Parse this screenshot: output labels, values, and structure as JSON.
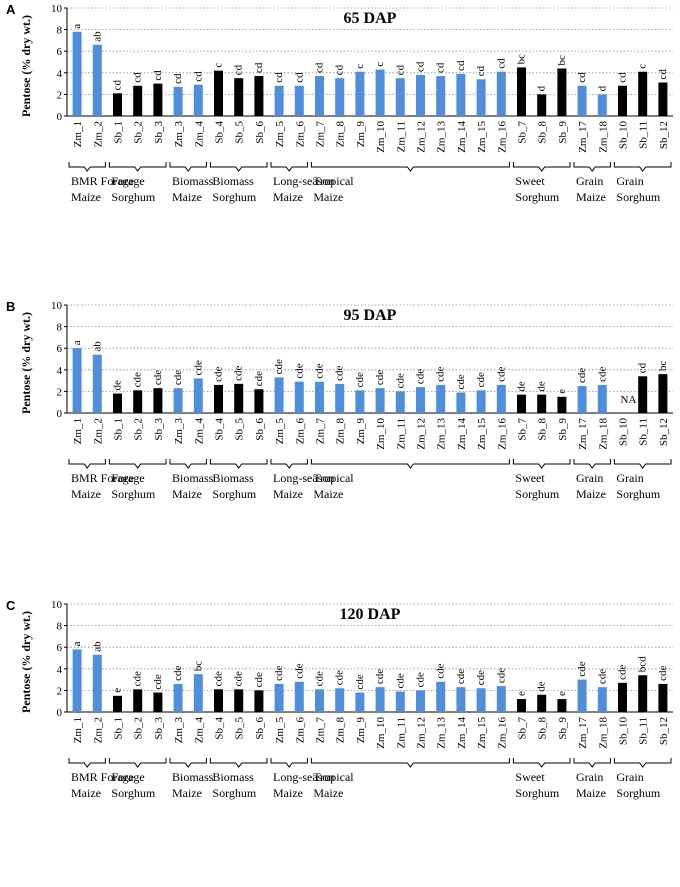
{
  "colors": {
    "maize": "#4f8edb",
    "sorghum": "#000000"
  },
  "categories": [
    "Zm_1",
    "Zm_2",
    "Sb_1",
    "Sb_2",
    "Sb_3",
    "Zm_3",
    "Zm_4",
    "Sb_4",
    "Sb_5",
    "Sb_6",
    "Zm_5",
    "Zm_6",
    "Zm_7",
    "Zm_8",
    "Zm_9",
    "Zm_10",
    "Zm_11",
    "Zm_12",
    "Zm_13",
    "Zm_14",
    "Zm_15",
    "Zm_16",
    "Sb_7",
    "Sb_8",
    "Sb_9",
    "Zm_17",
    "Zm_18",
    "Sb_10",
    "Sb_11",
    "Sb_12"
  ],
  "groups": [
    {
      "line1": "BMR Forage",
      "line2": "Maize",
      "start": 0,
      "end": 1
    },
    {
      "line1": "Forage",
      "line2": "Sorghum",
      "start": 2,
      "end": 4
    },
    {
      "line1": "Biomass",
      "line2": "Maize",
      "start": 5,
      "end": 6
    },
    {
      "line1": "Biomass",
      "line2": "Sorghum",
      "start": 7,
      "end": 9
    },
    {
      "line1": "Long-season",
      "line2": "Maize",
      "start": 10,
      "end": 11
    },
    {
      "line1": "Tropical",
      "line2": "Maize",
      "start": 12,
      "end": 21
    },
    {
      "line1": "Sweet",
      "line2": "Sorghum",
      "start": 22,
      "end": 24
    },
    {
      "line1": "Grain",
      "line2": "Maize",
      "start": 25,
      "end": 26
    },
    {
      "line1": "Grain",
      "line2": "Sorghum",
      "start": 27,
      "end": 29
    }
  ],
  "chart_data": [
    {
      "type": "bar",
      "panel": "A",
      "title": "65 DAP",
      "ylabel": "Pentose (% dry wt.)",
      "ylim": [
        0,
        10
      ],
      "yticks": [
        0,
        2,
        4,
        6,
        8,
        10
      ],
      "values": [
        7.8,
        6.6,
        2.1,
        2.8,
        3.0,
        2.7,
        2.9,
        4.2,
        3.5,
        3.7,
        2.8,
        2.8,
        3.7,
        3.5,
        4.1,
        4.3,
        3.5,
        3.8,
        3.7,
        3.9,
        3.4,
        4.1,
        4.5,
        2.0,
        4.4,
        2.8,
        2.0,
        2.8,
        4.1,
        3.1
      ],
      "letters": [
        "a",
        "ab",
        "cd",
        "cd",
        "cd",
        "cd",
        "cd",
        "c",
        "cd",
        "cd",
        "cd",
        "cd",
        "cd",
        "cd",
        "c",
        "c",
        "cd",
        "cd",
        "cd",
        "cd",
        "cd",
        "cd",
        "bc",
        "d",
        "bc",
        "cd",
        "d",
        "cd",
        "c",
        "cd"
      ]
    },
    {
      "type": "bar",
      "panel": "B",
      "title": "95 DAP",
      "ylabel": "Pentose (% dry wt.)",
      "ylim": [
        0,
        10
      ],
      "yticks": [
        0,
        2,
        4,
        6,
        8,
        10
      ],
      "values": [
        6.0,
        5.4,
        1.8,
        2.1,
        2.3,
        2.3,
        3.2,
        2.6,
        2.7,
        2.2,
        3.3,
        2.9,
        2.9,
        2.7,
        2.1,
        2.3,
        2.0,
        2.4,
        2.6,
        1.9,
        2.1,
        2.6,
        1.7,
        1.7,
        1.5,
        2.5,
        2.6,
        null,
        3.4,
        3.6
      ],
      "letters": [
        "a",
        "ab",
        "de",
        "cde",
        "cde",
        "cde",
        "cde",
        "cde",
        "cde",
        "cde",
        "cde",
        "cde",
        "cde",
        "cde",
        "cde",
        "cde",
        "cde",
        "cde",
        "cde",
        "cde",
        "cde",
        "cde",
        "de",
        "de",
        "e",
        "cde",
        "cde",
        "NA",
        "cd",
        "bc"
      ]
    },
    {
      "type": "bar",
      "panel": "C",
      "title": "120 DAP",
      "ylabel": "Pentose (% dry wt.)",
      "ylim": [
        0,
        10
      ],
      "yticks": [
        0,
        2,
        4,
        6,
        8,
        10
      ],
      "values": [
        5.8,
        5.3,
        1.5,
        2.1,
        1.8,
        2.6,
        3.5,
        2.1,
        2.1,
        2.0,
        2.6,
        2.8,
        2.1,
        2.2,
        1.8,
        2.3,
        1.9,
        2.0,
        2.8,
        2.3,
        2.2,
        2.4,
        1.2,
        1.6,
        1.2,
        3.0,
        2.3,
        2.7,
        3.4,
        2.6
      ],
      "letters": [
        "a",
        "ab",
        "e",
        "cde",
        "cde",
        "cde",
        "bc",
        "cde",
        "cde",
        "cde",
        "cde",
        "cde",
        "cde",
        "cde",
        "cde",
        "cde",
        "cde",
        "cde",
        "cde",
        "cde",
        "cde",
        "cde",
        "e",
        "de",
        "e",
        "cde",
        "cde",
        "cde",
        "bcd",
        "cde"
      ]
    }
  ]
}
